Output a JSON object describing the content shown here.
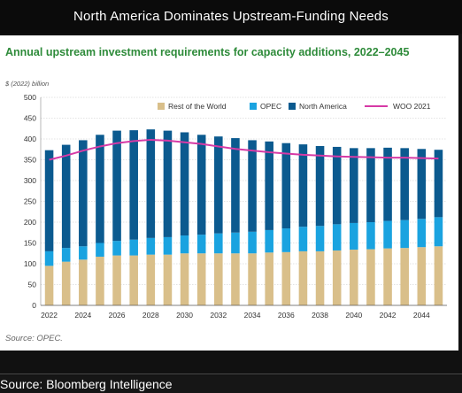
{
  "header": {
    "title": "North America Dominates Upstream-Funding Needs"
  },
  "colors": {
    "rest_of_world": "#d9bf8a",
    "opec": "#1aa3e0",
    "north_america": "#0b5a8f",
    "woo_2021": "#d63aa6",
    "title_green": "#2e8b3a"
  },
  "chart_data": {
    "type": "bar",
    "title": "Annual upstream investment requirements for capacity additions, 2022–2045",
    "ylabel": "$ (2022) billion",
    "xlabel": "",
    "ylim": [
      0,
      500
    ],
    "yticks": [
      0,
      50,
      100,
      150,
      200,
      250,
      300,
      350,
      400,
      450,
      500
    ],
    "grid": true,
    "legend_position": "top-right",
    "stacked": true,
    "categories": [
      "2022",
      "2023",
      "2024",
      "2025",
      "2026",
      "2027",
      "2028",
      "2029",
      "2030",
      "2031",
      "2032",
      "2033",
      "2034",
      "2035",
      "2036",
      "2037",
      "2038",
      "2039",
      "2040",
      "2041",
      "2042",
      "2043",
      "2044",
      "2045"
    ],
    "x_tick_labels": [
      "2022",
      "2024",
      "2026",
      "2028",
      "2030",
      "2032",
      "2034",
      "2036",
      "2038",
      "2040",
      "2042",
      "2044"
    ],
    "series": [
      {
        "name": "Rest of the World",
        "kind": "bar",
        "values": [
          95,
          105,
          110,
          117,
          120,
          120,
          122,
          122,
          125,
          125,
          125,
          125,
          125,
          127,
          128,
          130,
          130,
          132,
          134,
          135,
          137,
          138,
          140,
          142
        ]
      },
      {
        "name": "OPEC",
        "kind": "bar",
        "values": [
          35,
          33,
          32,
          33,
          35,
          38,
          40,
          42,
          43,
          45,
          48,
          50,
          52,
          54,
          57,
          59,
          61,
          63,
          64,
          65,
          66,
          67,
          68,
          70
        ]
      },
      {
        "name": "North America",
        "kind": "bar",
        "values": [
          243,
          248,
          255,
          260,
          265,
          263,
          261,
          256,
          248,
          240,
          233,
          227,
          220,
          213,
          205,
          198,
          192,
          186,
          180,
          178,
          176,
          173,
          168,
          162
        ]
      },
      {
        "name": "WOO 2021",
        "kind": "line",
        "values": [
          350,
          360,
          372,
          382,
          390,
          395,
          398,
          396,
          392,
          388,
          382,
          376,
          372,
          368,
          365,
          362,
          360,
          358,
          357,
          356,
          355,
          355,
          354,
          353
        ]
      }
    ],
    "source": "Source: OPEC."
  },
  "footer": {
    "source": "Source: Bloomberg Intelligence"
  }
}
